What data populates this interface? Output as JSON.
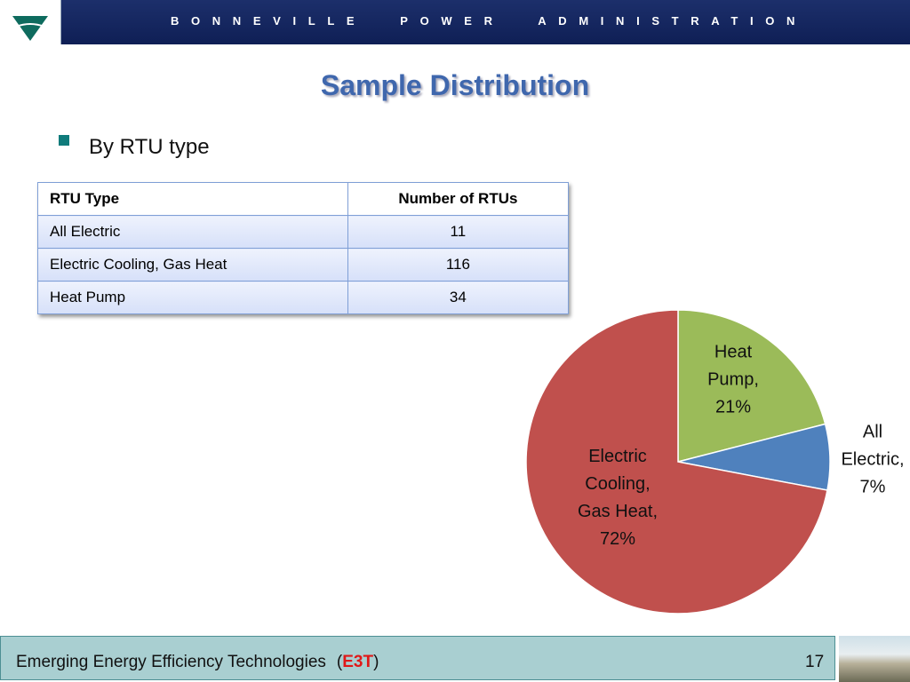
{
  "header": {
    "organization": "BONNEVILLE POWER ADMINISTRATION"
  },
  "title": "Sample Distribution",
  "bullet": "By RTU type",
  "table": {
    "headers": [
      "RTU Type",
      "Number of RTUs"
    ],
    "rows": [
      [
        "All Electric",
        11
      ],
      [
        "Electric Cooling, Gas Heat",
        116
      ],
      [
        "Heat Pump",
        34
      ]
    ]
  },
  "chart_data": {
    "type": "pie",
    "categories": [
      "Heat Pump,",
      "All Electric,",
      "Electric Cooling, Gas Heat,"
    ],
    "values": [
      21,
      7,
      72
    ],
    "value_labels": [
      "21%",
      "7%",
      "72%"
    ],
    "colors": [
      "#9bbb59",
      "#4f81bd",
      "#c0504d"
    ]
  },
  "footer": {
    "text": "Emerging Energy Efficiency Technologies",
    "abbreviation": [
      "(",
      "E3T",
      ")"
    ],
    "page": 17
  }
}
